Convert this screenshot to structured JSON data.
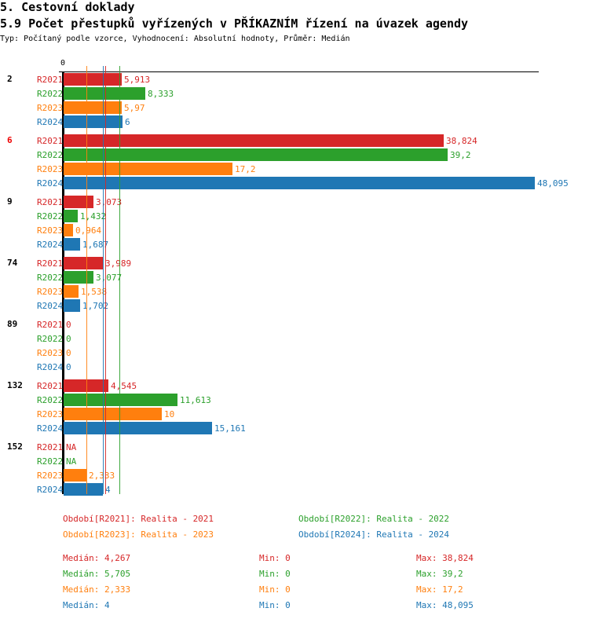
{
  "header": {
    "section": "5. Cestovní doklady",
    "title": "5.9 Počet přestupků vyřízených v PŘÍKAZNÍM řízení na úvazek agendy",
    "subtitle": "Typ: Počítaný podle vzorce, Vyhodnocení: Absolutní hodnoty, Průměr: Medián"
  },
  "chart_data": {
    "type": "bar",
    "orientation": "horizontal",
    "axis_zero_label": "0",
    "xlim": [
      0,
      48.095
    ],
    "series_names": [
      "R2021",
      "R2022",
      "R2023",
      "R2024"
    ],
    "colors": {
      "R2021": "#d62728",
      "R2022": "#2ca02c",
      "R2023": "#ff7f0e",
      "R2024": "#1f77b4"
    },
    "groups": [
      {
        "label": "2",
        "highlight": false,
        "values": [
          5.913,
          8.333,
          5.97,
          6
        ],
        "labels": [
          "5,913",
          "8,333",
          "5,97",
          "6"
        ]
      },
      {
        "label": "6",
        "highlight": true,
        "values": [
          38.824,
          39.2,
          17.2,
          48.095
        ],
        "labels": [
          "38,824",
          "39,2",
          "17,2",
          "48,095"
        ]
      },
      {
        "label": "9",
        "highlight": false,
        "values": [
          3.073,
          1.432,
          0.964,
          1.687
        ],
        "labels": [
          "3,073",
          "1,432",
          "0,964",
          "1,687"
        ]
      },
      {
        "label": "74",
        "highlight": false,
        "values": [
          3.989,
          3.077,
          1.538,
          1.702
        ],
        "labels": [
          "3,989",
          "3,077",
          "1,538",
          "1,702"
        ]
      },
      {
        "label": "89",
        "highlight": false,
        "values": [
          0,
          0,
          0,
          0
        ],
        "labels": [
          "0",
          "0",
          "0",
          "0"
        ]
      },
      {
        "label": "132",
        "highlight": false,
        "values": [
          4.545,
          11.613,
          10,
          15.161
        ],
        "labels": [
          "4,545",
          "11,613",
          "10",
          "15,161"
        ]
      },
      {
        "label": "152",
        "highlight": false,
        "values": [
          null,
          null,
          2.333,
          4
        ],
        "labels": [
          "NA",
          "NA",
          "2,333",
          "4"
        ]
      }
    ],
    "medians": [
      4.267,
      5.705,
      2.333,
      4
    ],
    "legend": [
      "Období[R2021]: Realita - 2021",
      "Období[R2022]: Realita - 2022",
      "Období[R2023]: Realita - 2023",
      "Období[R2024]: Realita - 2024"
    ],
    "stats": [
      {
        "median": "Medián: 4,267",
        "min": "Min: 0",
        "max": "Max: 38,824"
      },
      {
        "median": "Medián: 5,705",
        "min": "Min: 0",
        "max": "Max: 39,2"
      },
      {
        "median": "Medián: 2,333",
        "min": "Min: 0",
        "max": "Max: 17,2"
      },
      {
        "median": "Medián: 4",
        "min": "Min: 0",
        "max": "Max: 48,095"
      }
    ]
  }
}
